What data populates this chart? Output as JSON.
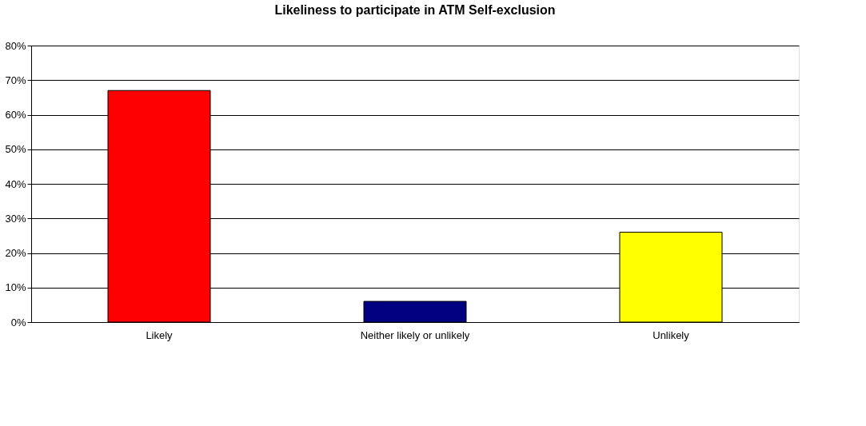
{
  "chart_data": {
    "type": "bar",
    "title": "Likeliness to participate in ATM Self-exclusion",
    "categories": [
      "Likely",
      "Neither likely or unlikely",
      "Unlikely"
    ],
    "values": [
      67,
      6,
      26
    ],
    "colors": [
      "#ff0000",
      "#000080",
      "#ffff00"
    ],
    "ylim": [
      0,
      80
    ],
    "yticks": [
      {
        "value": 0,
        "label": "0%"
      },
      {
        "value": 10,
        "label": "10%"
      },
      {
        "value": 20,
        "label": "20%"
      },
      {
        "value": 30,
        "label": "30%"
      },
      {
        "value": 40,
        "label": "40%"
      },
      {
        "value": 50,
        "label": "50%"
      },
      {
        "value": 60,
        "label": "60%"
      },
      {
        "value": 70,
        "label": "70%"
      },
      {
        "value": 80,
        "label": "80%"
      }
    ],
    "grid": "y"
  }
}
